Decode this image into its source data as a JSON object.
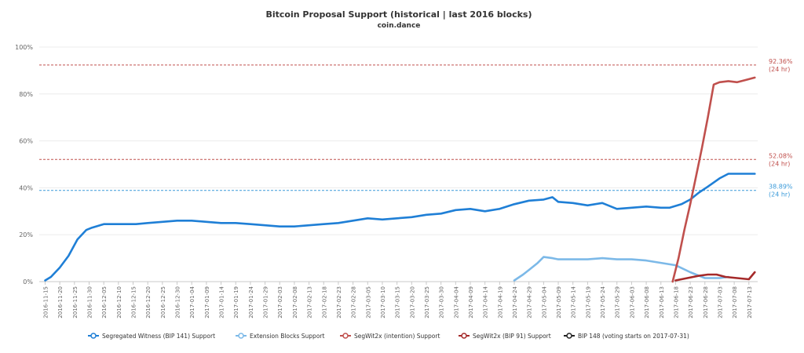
{
  "chart_data": {
    "type": "line",
    "title": "Bitcoin Proposal Support (historical | last 2016 blocks)",
    "subtitle": "coin.dance",
    "y_ticks": [
      "0%",
      "20%",
      "40%",
      "60%",
      "80%",
      "100%"
    ],
    "ylim": [
      0,
      100
    ],
    "grid": true,
    "legend_position": "bottom",
    "x_ticks": [
      "2016-11-15",
      "2016-11-20",
      "2016-11-25",
      "2016-11-30",
      "2016-12-05",
      "2016-12-10",
      "2016-12-15",
      "2016-12-20",
      "2016-12-25",
      "2016-12-30",
      "2017-01-04",
      "2017-01-09",
      "2017-01-14",
      "2017-01-19",
      "2017-01-24",
      "2017-01-29",
      "2017-02-03",
      "2017-02-08",
      "2017-02-13",
      "2017-02-18",
      "2017-02-23",
      "2017-02-28",
      "2017-03-05",
      "2017-03-10",
      "2017-03-15",
      "2017-03-20",
      "2017-03-25",
      "2017-03-30",
      "2017-04-04",
      "2017-04-09",
      "2017-04-14",
      "2017-04-19",
      "2017-04-24",
      "2017-04-29",
      "2017-05-04",
      "2017-05-09",
      "2017-05-14",
      "2017-05-19",
      "2017-05-24",
      "2017-05-29",
      "2017-06-03",
      "2017-06-08",
      "2017-06-13",
      "2017-06-18",
      "2017-06-23",
      "2017-06-28",
      "2017-07-03",
      "2017-07-08",
      "2017-07-13"
    ],
    "reference_lines": [
      {
        "value": 92.36,
        "label": "92.36%",
        "sublabel": "(24 hr)",
        "color": "#c0504d"
      },
      {
        "value": 52.08,
        "label": "52.08%",
        "sublabel": "(24 hr)",
        "color": "#c0504d"
      },
      {
        "value": 38.89,
        "label": "38.89%",
        "sublabel": "(24 hr)",
        "color": "#3a9ad9"
      }
    ],
    "series": [
      {
        "name": "Segregated Witness (BIP 141) Support",
        "color": "#1f7fd6",
        "x": [
          "2016-11-15",
          "2016-11-17",
          "2016-11-20",
          "2016-11-23",
          "2016-11-26",
          "2016-11-29",
          "2016-12-01",
          "2016-12-05",
          "2016-12-08",
          "2016-12-12",
          "2016-12-16",
          "2016-12-20",
          "2016-12-25",
          "2016-12-30",
          "2017-01-04",
          "2017-01-09",
          "2017-01-14",
          "2017-01-19",
          "2017-01-24",
          "2017-01-29",
          "2017-02-03",
          "2017-02-08",
          "2017-02-13",
          "2017-02-18",
          "2017-02-23",
          "2017-02-28",
          "2017-03-05",
          "2017-03-10",
          "2017-03-15",
          "2017-03-20",
          "2017-03-25",
          "2017-03-30",
          "2017-04-04",
          "2017-04-09",
          "2017-04-14",
          "2017-04-19",
          "2017-04-24",
          "2017-04-29",
          "2017-05-04",
          "2017-05-07",
          "2017-05-09",
          "2017-05-14",
          "2017-05-19",
          "2017-05-24",
          "2017-05-29",
          "2017-06-03",
          "2017-06-08",
          "2017-06-13",
          "2017-06-16",
          "2017-06-20",
          "2017-06-23",
          "2017-06-26",
          "2017-06-29",
          "2017-07-03",
          "2017-07-06",
          "2017-07-10",
          "2017-07-13",
          "2017-07-15"
        ],
        "y": [
          0.5,
          2,
          6,
          11,
          18,
          22,
          23,
          24.5,
          24.5,
          24.5,
          24.5,
          25,
          25.5,
          26,
          26,
          25.5,
          25,
          25,
          24.5,
          24,
          23.5,
          23.5,
          24,
          24.5,
          25,
          26,
          27,
          26.5,
          27,
          27.5,
          28.5,
          29,
          30.5,
          31,
          30,
          31,
          33,
          34.5,
          35,
          36,
          34,
          33.5,
          32.5,
          33.5,
          31,
          31.5,
          32,
          31.5,
          31.5,
          33,
          35,
          38,
          40.5,
          44,
          46,
          46,
          46,
          46
        ]
      },
      {
        "name": "Extension Blocks Support",
        "color": "#7cb9e8",
        "x": [
          "2017-04-24",
          "2017-04-27",
          "2017-04-29",
          "2017-05-02",
          "2017-05-04",
          "2017-05-07",
          "2017-05-09",
          "2017-05-14",
          "2017-05-19",
          "2017-05-24",
          "2017-05-29",
          "2017-06-03",
          "2017-06-08",
          "2017-06-13",
          "2017-06-18",
          "2017-06-23",
          "2017-06-28",
          "2017-07-03",
          "2017-07-06"
        ],
        "y": [
          0.5,
          3,
          5,
          8,
          10.5,
          10,
          9.5,
          9.5,
          9.5,
          10,
          9.5,
          9.5,
          9,
          8,
          7,
          4,
          1.5,
          1.5,
          2
        ]
      },
      {
        "name": "SegWit2x (intention) Support",
        "color": "#c0504d",
        "x": [
          "2017-06-17",
          "2017-06-19",
          "2017-06-21",
          "2017-06-23",
          "2017-06-25",
          "2017-06-27",
          "2017-06-29",
          "2017-07-01",
          "2017-07-03",
          "2017-07-06",
          "2017-07-09",
          "2017-07-12",
          "2017-07-15"
        ],
        "y": [
          0,
          10,
          22,
          33,
          45,
          57,
          70,
          84,
          85,
          85.5,
          85,
          86,
          87
        ]
      },
      {
        "name": "SegWit2x (BIP 91) Support",
        "color": "#a52a2a",
        "x": [
          "2017-06-18",
          "2017-06-22",
          "2017-06-26",
          "2017-06-29",
          "2017-07-02",
          "2017-07-05",
          "2017-07-13",
          "2017-07-15"
        ],
        "y": [
          0.5,
          1.5,
          2.5,
          3,
          3,
          2,
          1,
          4
        ]
      },
      {
        "name": "BIP 148 (voting starts on 2017-07-31)",
        "color": "#222222",
        "x": [],
        "y": []
      }
    ]
  }
}
